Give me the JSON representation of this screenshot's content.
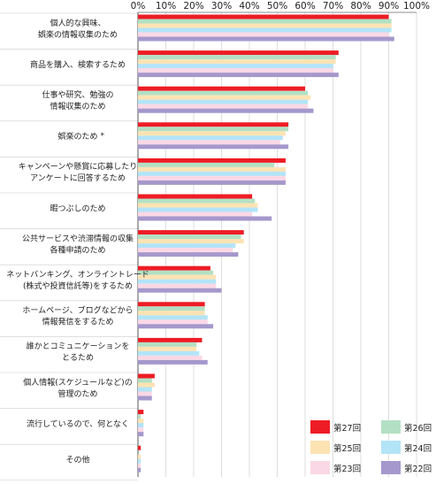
{
  "chart_data": {
    "type": "bar",
    "orientation": "horizontal",
    "xlim": [
      0,
      100
    ],
    "x_ticks": [
      "0%",
      "10%",
      "20%",
      "30%",
      "40%",
      "50%",
      "60%",
      "70%",
      "80%",
      "90%",
      "100%"
    ],
    "categories": [
      {
        "lines": [
          "個人的な興味、",
          "娯楽の情報収集のため"
        ]
      },
      {
        "lines": [
          "商品を購入、検索するため"
        ]
      },
      {
        "lines": [
          "仕事や研究、勉強の",
          "情報収集のため"
        ]
      },
      {
        "lines": [
          "娯楽のため"
        ],
        "mark": "*"
      },
      {
        "lines": [
          "キャンペーンや懸賞に応募したり",
          "アンケートに回答するため"
        ]
      },
      {
        "lines": [
          "暇つぶしのため"
        ]
      },
      {
        "lines": [
          "公共サービスや渋滞情報の収集",
          "各種申請のため"
        ]
      },
      {
        "lines": [
          "ネットバンキング、オンライントレード",
          "(株式や投資信託等)をするため"
        ]
      },
      {
        "lines": [
          "ホームページ、ブログなどから",
          "情報発信をするため"
        ]
      },
      {
        "lines": [
          "誰かとコミュニケーションを",
          "とるため"
        ]
      },
      {
        "lines": [
          "個人情報(スケジュールなど)の",
          "管理のため"
        ]
      },
      {
        "lines": [
          "流行しているので、何となく"
        ]
      },
      {
        "lines": [
          "その他"
        ]
      }
    ],
    "series": [
      {
        "name": "第27回",
        "color": "#ee1c25",
        "values": [
          90,
          72,
          60,
          54,
          53,
          41,
          38,
          26,
          24,
          23,
          6,
          2,
          1
        ]
      },
      {
        "name": "第26回",
        "color": "#b3e0c4",
        "values": [
          91,
          71,
          61,
          54,
          49,
          42,
          37,
          27,
          24,
          21,
          5,
          1,
          0
        ]
      },
      {
        "name": "第25回",
        "color": "#fde3b3",
        "values": [
          91,
          71,
          62,
          53,
          53,
          43,
          38,
          28,
          24,
          21,
          6,
          2,
          1
        ]
      },
      {
        "name": "第24回",
        "color": "#b3e4f7",
        "values": [
          91,
          70,
          61,
          52,
          53,
          43,
          35,
          28,
          25,
          22,
          5,
          2,
          1
        ]
      },
      {
        "name": "第23回",
        "color": "#fbd8e6",
        "values": [
          90,
          70,
          61,
          51,
          53,
          41,
          34,
          28,
          25,
          23,
          5,
          2,
          1
        ]
      },
      {
        "name": "第22回",
        "color": "#a598cc",
        "values": [
          92,
          72,
          63,
          54,
          53,
          48,
          36,
          30,
          27,
          25,
          5,
          2,
          1
        ]
      }
    ],
    "legend_position": "bottom-right",
    "grid": true
  }
}
